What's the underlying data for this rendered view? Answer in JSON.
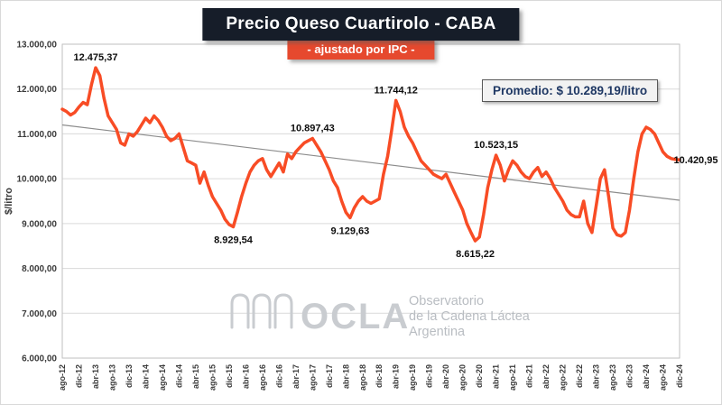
{
  "title": "Precio Queso Cuartirolo - CABA",
  "subtitle": "- ajustado por IPC -",
  "promedio": "Promedio: $ 10.289,19/litro",
  "watermark": {
    "brand": "OCLA",
    "line1": "Observatorio",
    "line2": "de la Cadena Láctea",
    "line3": "Argentina"
  },
  "colors": {
    "line": "#f84c25",
    "trend": "#8c8c8c",
    "title_bg": "#161d29",
    "subtitle_bg": "#e6492e",
    "promedio_text": "#1f3864",
    "grid": "#dadada"
  },
  "chart_data": {
    "type": "line",
    "title": "Precio Queso Cuartirolo - CABA",
    "subtitle": "- ajustado por IPC -",
    "xlabel": "",
    "ylabel": "$/litro",
    "ylim": [
      6000,
      13000
    ],
    "ytick_values": [
      6000,
      7000,
      8000,
      9000,
      10000,
      11000,
      12000,
      13000
    ],
    "ytick_labels": [
      "6.000,00",
      "7.000,00",
      "8.000,00",
      "9.000,00",
      "10.000,00",
      "11.000,00",
      "12.000,00",
      "13.000,00"
    ],
    "xtick_every": 4,
    "xtick_labels": [
      "ago-12",
      "dic-12",
      "abr-13",
      "ago-13",
      "dic-13",
      "abr-14",
      "ago-14",
      "dic-14",
      "abr-15",
      "ago-15",
      "dic-15",
      "abr-16",
      "ago-16",
      "dic-16",
      "abr-17",
      "ago-17",
      "dic-17",
      "abr-18",
      "ago-18",
      "dic-18",
      "abr-19",
      "ago-19",
      "dic-19",
      "abr-20",
      "ago-20",
      "dic-20",
      "abr-21",
      "ago-21",
      "dic-21",
      "abr-22",
      "ago-22",
      "dic-22",
      "abr-23",
      "ago-23",
      "dic-23",
      "abr-24",
      "ago-24",
      "dic-24"
    ],
    "series": [
      {
        "name": "Precio Queso Cuartirolo ajustado por IPC ($/litro)",
        "values": [
          11550,
          11500,
          11420,
          11480,
          11600,
          11700,
          11650,
          12100,
          12475.37,
          12300,
          11800,
          11400,
          11250,
          11100,
          10800,
          10750,
          11000,
          10950,
          11050,
          11200,
          11350,
          11250,
          11400,
          11300,
          11150,
          10950,
          10850,
          10900,
          11000,
          10700,
          10400,
          10350,
          10300,
          9900,
          10150,
          9850,
          9600,
          9450,
          9300,
          9100,
          8980,
          8929.54,
          9250,
          9600,
          9900,
          10150,
          10300,
          10400,
          10450,
          10200,
          10050,
          10200,
          10350,
          10150,
          10550,
          10450,
          10600,
          10700,
          10800,
          10850,
          10897.43,
          10750,
          10600,
          10400,
          10200,
          9950,
          9800,
          9500,
          9250,
          9129.63,
          9350,
          9500,
          9600,
          9500,
          9450,
          9500,
          9550,
          10100,
          10500,
          11100,
          11744.12,
          11500,
          11150,
          10950,
          10800,
          10600,
          10400,
          10300,
          10200,
          10100,
          10050,
          10000,
          10100,
          9900,
          9700,
          9500,
          9300,
          9000,
          8800,
          8615.22,
          8700,
          9200,
          9800,
          10200,
          10523.15,
          10300,
          9950,
          10200,
          10400,
          10300,
          10150,
          10050,
          10000,
          10150,
          10250,
          10050,
          10150,
          10000,
          9800,
          9650,
          9500,
          9300,
          9200,
          9150,
          9150,
          9500,
          9000,
          8800,
          9400,
          10000,
          10200,
          9600,
          8900,
          8750,
          8720,
          8800,
          9300,
          10000,
          10600,
          11000,
          11150,
          11100,
          11000,
          10800,
          10600,
          10500,
          10450,
          10430,
          10420.95
        ]
      }
    ],
    "trendline": {
      "start": 11200,
      "end": 9520
    },
    "promedio_value": 10289.19,
    "annotations": [
      {
        "text": "12.475,37",
        "index": 8,
        "placement": "above"
      },
      {
        "text": "8.929,54",
        "index": 41,
        "placement": "below"
      },
      {
        "text": "10.897,43",
        "index": 60,
        "placement": "above"
      },
      {
        "text": "9.129,63",
        "index": 69,
        "placement": "below"
      },
      {
        "text": "11.744,12",
        "index": 80,
        "placement": "above"
      },
      {
        "text": "8.615,22",
        "index": 99,
        "placement": "below"
      },
      {
        "text": "10.523,15",
        "index": 104,
        "placement": "above"
      },
      {
        "text": "10.420,95",
        "index": 148,
        "placement": "right"
      }
    ],
    "legend": false,
    "grid": true
  }
}
